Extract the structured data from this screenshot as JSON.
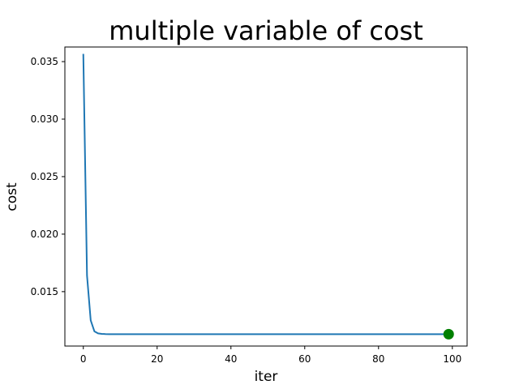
{
  "chart_data": {
    "type": "line",
    "title": "multiple variable of cost",
    "xlabel": "iter",
    "ylabel": "cost",
    "xlim": [
      -5,
      104
    ],
    "ylim": [
      0.01027,
      0.03627
    ],
    "grid": false,
    "x_ticks": [
      0,
      20,
      40,
      60,
      80,
      100
    ],
    "x_tick_labels": [
      "0",
      "20",
      "40",
      "60",
      "80",
      "100"
    ],
    "y_ticks": [
      0.015,
      0.02,
      0.025,
      0.03,
      0.035
    ],
    "y_tick_labels": [
      "0.015",
      "0.020",
      "0.025",
      "0.030",
      "0.035"
    ],
    "series": [
      {
        "color": "#1f77b4",
        "x_start": 0,
        "x_end": 99,
        "head_values": [
          0.0356,
          0.0164,
          0.0125,
          0.01155,
          0.01137,
          0.01133,
          0.01131,
          0.0113
        ],
        "tail_value": 0.0113
      }
    ],
    "marker": {
      "x": 99,
      "y": 0.0113,
      "color": "#008000"
    }
  }
}
